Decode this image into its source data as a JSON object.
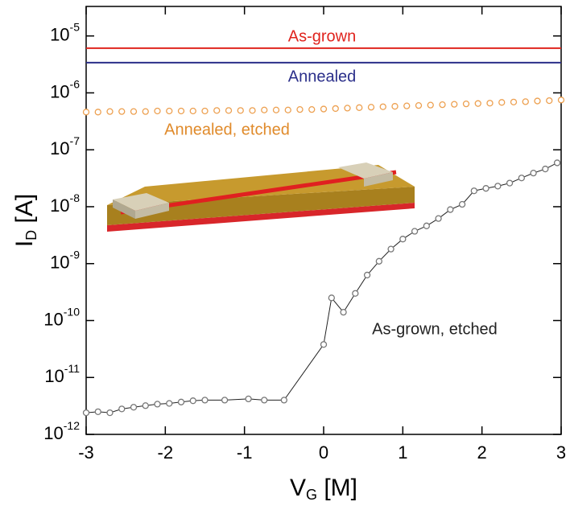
{
  "chart_data": {
    "type": "line",
    "x_label": "VG [M]",
    "y_label": "ID [A]",
    "xlim": [
      -3,
      3
    ],
    "xticks": [
      -3,
      -2,
      -1,
      0,
      1,
      2,
      3
    ],
    "ylim": [
      1e-12,
      3.3e-05
    ],
    "log_y": true,
    "yticks": [
      {
        "value": 1e-12,
        "label": "10-12"
      },
      {
        "value": 1e-11,
        "label": "10-11"
      },
      {
        "value": 1e-10,
        "label": "10-10"
      },
      {
        "value": 1e-09,
        "label": "10-9"
      },
      {
        "value": 1e-08,
        "label": "10-8"
      },
      {
        "value": 1e-07,
        "label": "10-7"
      },
      {
        "value": 1e-06,
        "label": "10-6"
      },
      {
        "value": 1e-05,
        "label": "10-5"
      }
    ],
    "series": [
      {
        "name": "As-grown",
        "color": "#e0241e",
        "line": true,
        "marker": false,
        "x": [
          -3,
          3
        ],
        "values": [
          6.1e-06,
          6.1e-06
        ]
      },
      {
        "name": "Annealed",
        "color": "#2b2f8a",
        "line": true,
        "marker": false,
        "x": [
          -3,
          3
        ],
        "values": [
          3.4e-06,
          3.4e-06
        ]
      },
      {
        "name": "Annealed, etched",
        "color": "#eda050",
        "line": false,
        "marker": true,
        "x": [
          -3,
          -2.85,
          -2.7,
          -2.55,
          -2.4,
          -2.25,
          -2.1,
          -1.95,
          -1.8,
          -1.65,
          -1.5,
          -1.35,
          -1.2,
          -1.05,
          -0.9,
          -0.75,
          -0.6,
          -0.45,
          -0.3,
          -0.15,
          0,
          0.15,
          0.3,
          0.45,
          0.6,
          0.75,
          0.9,
          1.05,
          1.2,
          1.35,
          1.5,
          1.65,
          1.8,
          1.95,
          2.1,
          2.25,
          2.4,
          2.55,
          2.7,
          2.85,
          3
        ],
        "values": [
          4.6e-07,
          4.6e-07,
          4.7e-07,
          4.7e-07,
          4.7e-07,
          4.7e-07,
          4.8e-07,
          4.8e-07,
          4.8e-07,
          4.8e-07,
          4.8e-07,
          4.9e-07,
          4.9e-07,
          4.9e-07,
          4.9e-07,
          5e-07,
          5e-07,
          5e-07,
          5.1e-07,
          5.1e-07,
          5.2e-07,
          5.3e-07,
          5.4e-07,
          5.5e-07,
          5.6e-07,
          5.7e-07,
          5.8e-07,
          5.9e-07,
          6e-07,
          6.1e-07,
          6.2e-07,
          6.3e-07,
          6.4e-07,
          6.5e-07,
          6.6e-07,
          6.8e-07,
          6.9e-07,
          7e-07,
          7.2e-07,
          7.3e-07,
          7.5e-07
        ]
      },
      {
        "name": "As-grown, etched",
        "color": "#222222",
        "line": true,
        "marker": true,
        "x": [
          -3,
          -2.85,
          -2.7,
          -2.55,
          -2.4,
          -2.25,
          -2.1,
          -1.95,
          -1.8,
          -1.65,
          -1.5,
          -1.25,
          -0.95,
          -0.75,
          -0.5,
          0,
          0.1,
          0.25,
          0.4,
          0.55,
          0.7,
          0.85,
          1,
          1.15,
          1.3,
          1.45,
          1.6,
          1.75,
          1.9,
          2.05,
          2.2,
          2.35,
          2.5,
          2.65,
          2.8,
          2.95
        ],
        "values": [
          2.4e-12,
          2.5e-12,
          2.4e-12,
          2.8e-12,
          3e-12,
          3.2e-12,
          3.4e-12,
          3.5e-12,
          3.7e-12,
          3.9e-12,
          4e-12,
          4e-12,
          4.2e-12,
          4e-12,
          4e-12,
          3.8e-11,
          2.5e-10,
          1.4e-10,
          3e-10,
          6.3e-10,
          1.1e-09,
          1.8e-09,
          2.7e-09,
          3.7e-09,
          4.6e-09,
          6.2e-09,
          8.9e-09,
          1.1e-08,
          1.9e-08,
          2.1e-08,
          2.3e-08,
          2.6e-08,
          3.2e-08,
          3.9e-08,
          4.6e-08,
          5.9e-08
        ]
      }
    ]
  }
}
